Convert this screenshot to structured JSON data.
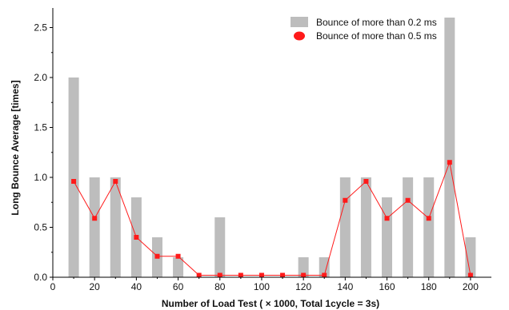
{
  "chart_data": {
    "type": "bar",
    "x": [
      10,
      20,
      30,
      40,
      50,
      60,
      70,
      80,
      90,
      100,
      110,
      120,
      130,
      140,
      150,
      160,
      170,
      180,
      190,
      200
    ],
    "series": [
      {
        "name": "Bounce of more than 0.2 ms",
        "type": "bar",
        "color": "#bdbdbd",
        "values": [
          2.0,
          1.0,
          1.0,
          0.8,
          0.4,
          0.2,
          0.0,
          0.6,
          0.0,
          0.0,
          0.0,
          0.2,
          0.2,
          1.0,
          1.0,
          0.8,
          1.0,
          1.0,
          2.6,
          0.4
        ]
      },
      {
        "name": "Bounce of more than 0.5 ms",
        "type": "line",
        "color": "#ff1a1a",
        "values": [
          0.96,
          0.59,
          0.96,
          0.4,
          0.21,
          0.21,
          0.02,
          0.02,
          0.02,
          0.02,
          0.02,
          0.02,
          0.02,
          0.77,
          0.96,
          0.59,
          0.77,
          0.59,
          1.15,
          0.02
        ]
      }
    ],
    "xlabel": "Number of Load Test ( × 1000, Total 1cycle = 3s)",
    "ylabel": "Long Bounce Average [times]",
    "xlim": [
      0,
      210
    ],
    "ylim": [
      0,
      2.6
    ],
    "xticks": [
      "0",
      "20",
      "40",
      "60",
      "80",
      "100",
      "120",
      "140",
      "160",
      "180",
      "200"
    ],
    "yticks": [
      "0.0",
      "0.5",
      "1.0",
      "1.5",
      "2.0",
      "2.5"
    ],
    "grid": false,
    "legend_position": "top-right"
  }
}
